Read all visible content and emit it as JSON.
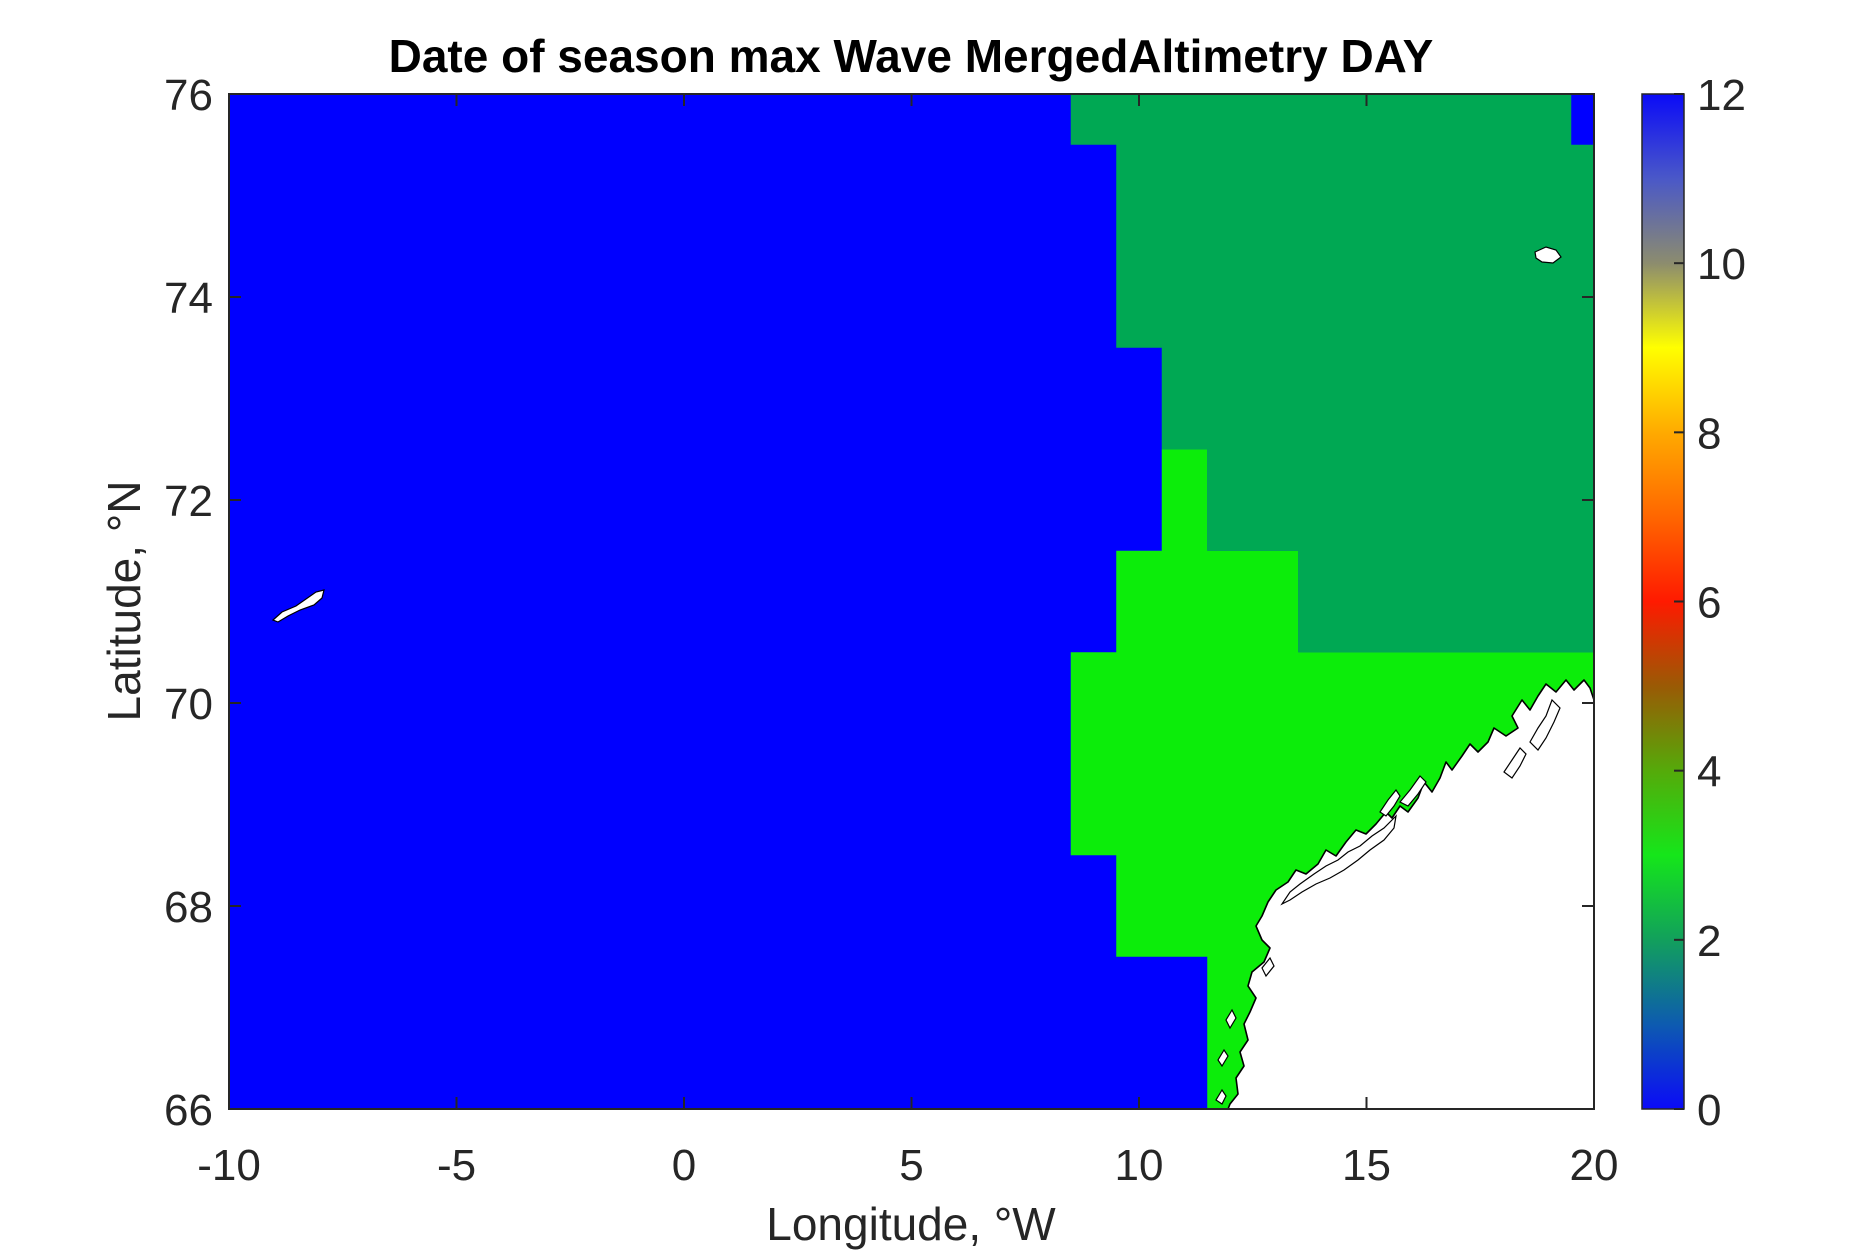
{
  "chart_data": {
    "type": "heatmap",
    "title": "Date of season max Wave MergedAltimetry DAY",
    "xlabel": "Longitude, °W",
    "ylabel": "Latitude, °N",
    "xlim": [
      -10,
      20
    ],
    "ylim": [
      66,
      76
    ],
    "xticks": [
      "-10",
      "-5",
      "0",
      "5",
      "10",
      "15",
      "20"
    ],
    "yticks": [
      "76",
      "74",
      "72",
      "70",
      "68",
      "66"
    ],
    "colorbar": {
      "range": [
        0,
        12
      ],
      "ticks": [
        "12",
        "10",
        "8",
        "6",
        "4",
        "2",
        "0"
      ],
      "stops": [
        {
          "v": 0,
          "color": "#0b0bf7"
        },
        {
          "v": 1,
          "color": "#0d5bb0"
        },
        {
          "v": 2,
          "color": "#12a05c"
        },
        {
          "v": 3,
          "color": "#15e61a"
        },
        {
          "v": 4,
          "color": "#55aa0a"
        },
        {
          "v": 5,
          "color": "#9a5a05"
        },
        {
          "v": 6,
          "color": "#ff1a00"
        },
        {
          "v": 7,
          "color": "#ff6600"
        },
        {
          "v": 8,
          "color": "#ffaa00"
        },
        {
          "v": 9,
          "color": "#ffff00"
        },
        {
          "v": 10,
          "color": "#8c8c6e"
        },
        {
          "v": 11,
          "color": "#4a58c8"
        },
        {
          "v": 12,
          "color": "#0b0bf7"
        }
      ]
    },
    "regions": [
      {
        "name": "background",
        "value": 0,
        "color": "#0000ff",
        "lon_lat": [
          [
            -10,
            66
          ],
          [
            20,
            66
          ],
          [
            20,
            76
          ],
          [
            -10,
            76
          ]
        ]
      },
      {
        "name": "north-east",
        "value": 2,
        "color": "#00a853",
        "lon_lat": [
          [
            8.5,
            76
          ],
          [
            19.5,
            76
          ],
          [
            19.5,
            75.5
          ],
          [
            20,
            75.5
          ],
          [
            20,
            70.5
          ],
          [
            13.5,
            70.5
          ],
          [
            13.5,
            71.5
          ],
          [
            11.5,
            71.5
          ],
          [
            11.5,
            72.5
          ],
          [
            10.5,
            72.5
          ],
          [
            10.5,
            73.5
          ],
          [
            9.5,
            73.5
          ],
          [
            9.5,
            75.5
          ],
          [
            8.5,
            75.5
          ]
        ]
      },
      {
        "name": "south-east",
        "value": 3,
        "color": "#0ced0a",
        "lon_lat": [
          [
            10.5,
            72.5
          ],
          [
            11.5,
            72.5
          ],
          [
            11.5,
            71.5
          ],
          [
            13.5,
            71.5
          ],
          [
            13.5,
            70.5
          ],
          [
            20,
            70.5
          ],
          [
            20,
            66
          ],
          [
            11.5,
            66
          ],
          [
            11.5,
            67.5
          ],
          [
            9.5,
            67.5
          ],
          [
            9.5,
            68.5
          ],
          [
            8.5,
            68.5
          ],
          [
            8.5,
            70.5
          ],
          [
            9.5,
            70.5
          ],
          [
            9.5,
            71.5
          ],
          [
            10.5,
            71.5
          ]
        ]
      }
    ]
  }
}
